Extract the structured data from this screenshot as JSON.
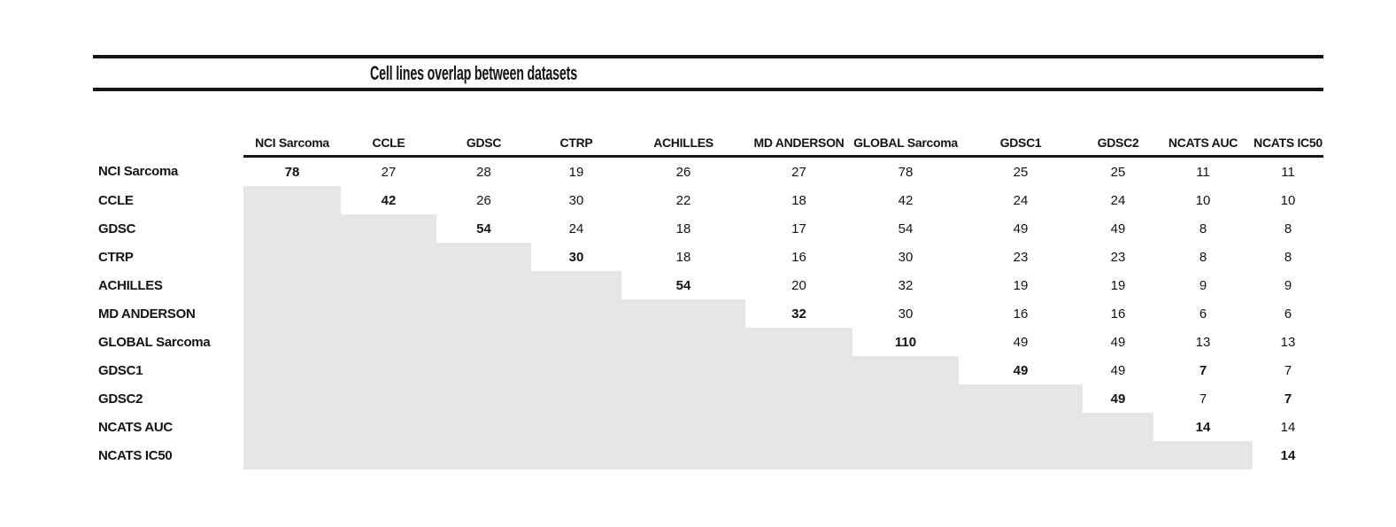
{
  "chart_data": {
    "type": "table",
    "title": "Cell lines overlap between datasets",
    "datasets": [
      "NCI Sarcoma",
      "CCLE",
      "GDSC",
      "CTRP",
      "ACHILLES",
      "MD ANDERSON",
      "GLOBAL Sarcoma",
      "GDSC1",
      "GDSC2",
      "NCATS AUC",
      "NCATS IC50"
    ],
    "matrix": [
      [
        78,
        27,
        28,
        19,
        26,
        27,
        78,
        25,
        25,
        11,
        11
      ],
      [
        null,
        42,
        26,
        30,
        22,
        18,
        42,
        24,
        24,
        10,
        10
      ],
      [
        null,
        null,
        54,
        24,
        18,
        17,
        54,
        49,
        49,
        8,
        8
      ],
      [
        null,
        null,
        null,
        30,
        18,
        16,
        30,
        23,
        23,
        8,
        8
      ],
      [
        null,
        null,
        null,
        null,
        54,
        20,
        32,
        19,
        19,
        9,
        9
      ],
      [
        null,
        null,
        null,
        null,
        null,
        32,
        30,
        16,
        16,
        6,
        6
      ],
      [
        null,
        null,
        null,
        null,
        null,
        null,
        110,
        49,
        49,
        13,
        13
      ],
      [
        null,
        null,
        null,
        null,
        null,
        null,
        null,
        49,
        49,
        7,
        7
      ],
      [
        null,
        null,
        null,
        null,
        null,
        null,
        null,
        null,
        49,
        7,
        7
      ],
      [
        null,
        null,
        null,
        null,
        null,
        null,
        null,
        null,
        null,
        14,
        14
      ],
      [
        null,
        null,
        null,
        null,
        null,
        null,
        null,
        null,
        null,
        null,
        14
      ]
    ],
    "bold_cells": [
      [
        0,
        0
      ],
      [
        1,
        1
      ],
      [
        2,
        2
      ],
      [
        3,
        3
      ],
      [
        4,
        4
      ],
      [
        5,
        5
      ],
      [
        6,
        6
      ],
      [
        7,
        7
      ],
      [
        8,
        8
      ],
      [
        9,
        9
      ],
      [
        10,
        10
      ],
      [
        7,
        9
      ],
      [
        8,
        10
      ]
    ],
    "layout": {
      "lower_triangle_fill": "#e7e6e6",
      "lower_triangle_empty": true,
      "header_underline": true,
      "title_rules": true,
      "text_color": "#141414"
    }
  }
}
